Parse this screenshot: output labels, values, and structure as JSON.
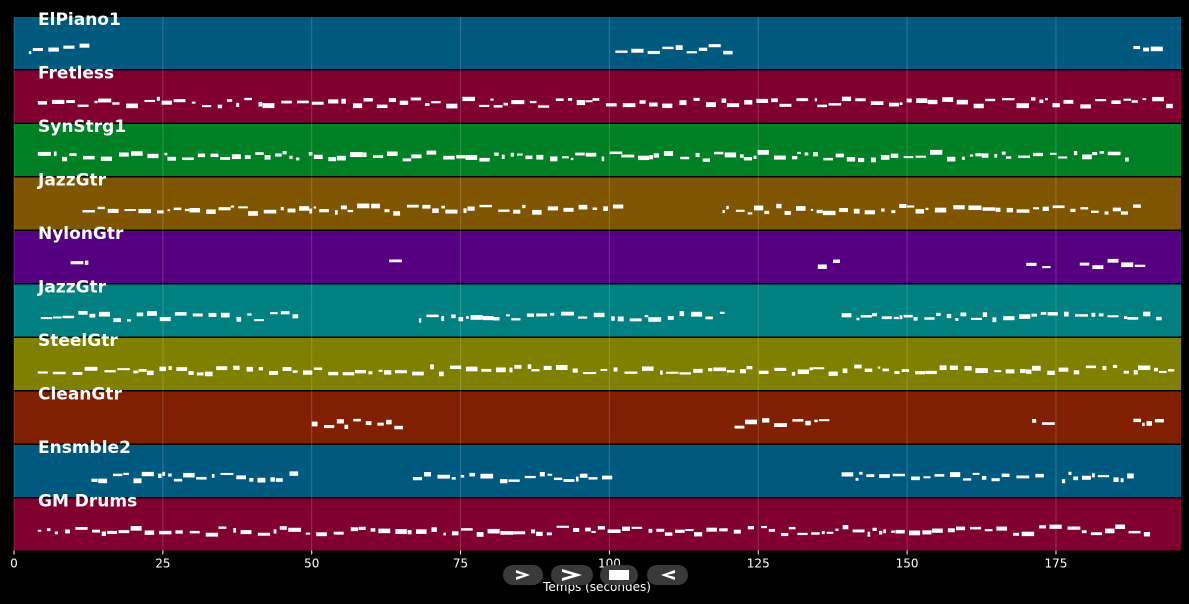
{
  "chart_data": {
    "type": "piano-roll",
    "xlabel": "Temps (secondes)",
    "xlim": [
      0,
      196
    ],
    "xticks": [
      0,
      25,
      50,
      75,
      100,
      125,
      150,
      175
    ],
    "grid": true,
    "tracks": [
      {
        "name": "ElPiano1",
        "color": "#005a80",
        "segments": [
          [
            2.5,
            12
          ],
          [
            101,
            120
          ],
          [
            188,
            193
          ]
        ]
      },
      {
        "name": "Fretless",
        "color": "#800030",
        "segments": [
          [
            4,
            194
          ]
        ]
      },
      {
        "name": "SynStrg1",
        "color": "#008025",
        "segments": [
          [
            4,
            48
          ],
          [
            49.5,
            101
          ],
          [
            102,
            137
          ],
          [
            138,
            172
          ],
          [
            174,
            188
          ]
        ]
      },
      {
        "name": "JazzGtr",
        "color": "#805500",
        "segments": [
          [
            11.5,
            103
          ],
          [
            119,
            189
          ]
        ]
      },
      {
        "name": "NylonGtr",
        "color": "#550080",
        "segments": [
          [
            9.5,
            12.5
          ],
          [
            63,
            66
          ],
          [
            135,
            138
          ],
          [
            170,
            175
          ],
          [
            179,
            190
          ]
        ]
      },
      {
        "name": "JazzGtr",
        "color": "#008080",
        "segments": [
          [
            4.5,
            48
          ],
          [
            68,
            119
          ],
          [
            139,
            193
          ]
        ]
      },
      {
        "name": "SteelGtr",
        "color": "#808000",
        "segments": [
          [
            4,
            194
          ]
        ]
      },
      {
        "name": "CleanGtr",
        "color": "#802000",
        "segments": [
          [
            50,
            65
          ],
          [
            121,
            137
          ],
          [
            171,
            174
          ],
          [
            188,
            193
          ]
        ]
      },
      {
        "name": "Ensmble2",
        "color": "#005a80",
        "segments": [
          [
            13,
            48
          ],
          [
            67,
            101
          ],
          [
            139,
            173
          ],
          [
            176,
            188
          ]
        ]
      },
      {
        "name": "GM Drums",
        "color": "#800030",
        "segments": [
          [
            4,
            190
          ]
        ]
      }
    ]
  },
  "controls": [
    {
      "name": "play-button",
      "icon": "play-outline-icon"
    },
    {
      "name": "forward-button",
      "icon": "forward-icon"
    },
    {
      "name": "stop-button",
      "icon": "stop-icon"
    },
    {
      "name": "rewind-button",
      "icon": "rewind-icon"
    }
  ]
}
